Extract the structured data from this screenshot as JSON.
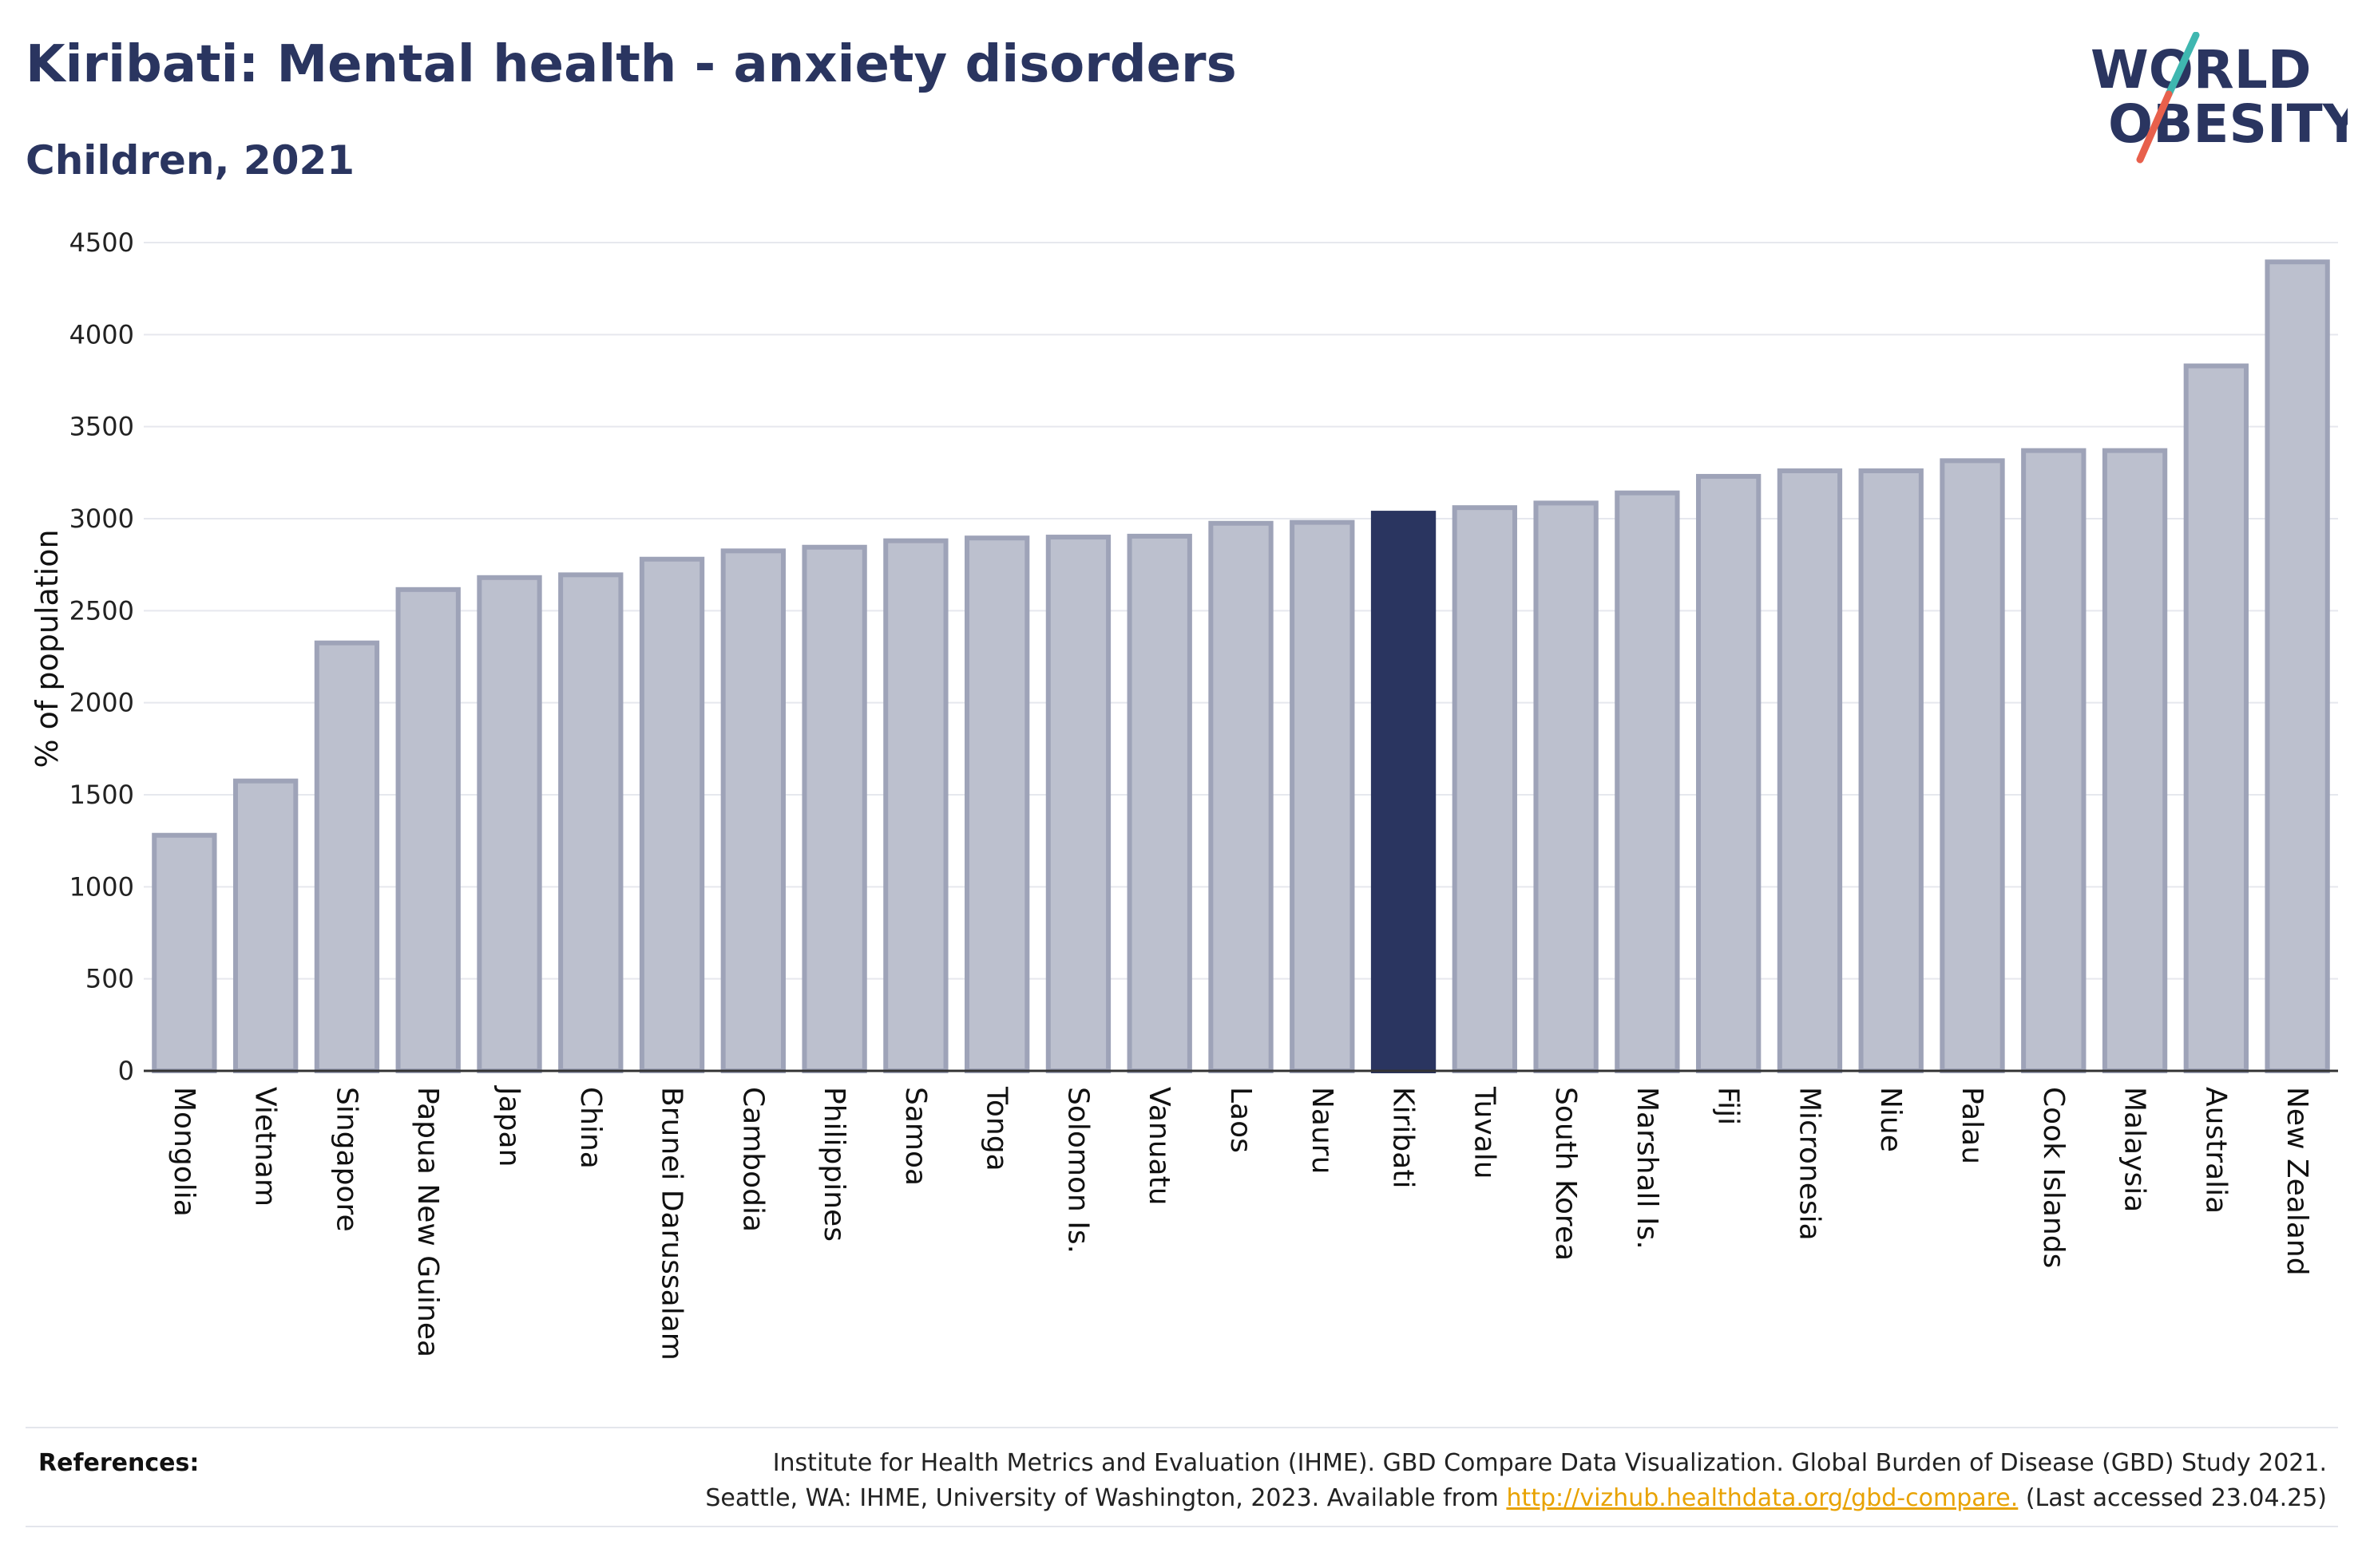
{
  "header": {
    "title": "Kiribati: Mental health - anxiety disorders",
    "subtitle": "Children, 2021"
  },
  "logo": {
    "line1": "WORLD",
    "line2": "OBESITY",
    "colors": {
      "text": "#2a3560",
      "slash_top": "#3fb7b0",
      "slash_bottom": "#e8604c"
    }
  },
  "chart_data": {
    "type": "bar",
    "ylabel": "% of population",
    "xlabel": "",
    "ylim": [
      0,
      4500
    ],
    "yticks": [
      0,
      500,
      1000,
      1500,
      2000,
      2500,
      3000,
      3500,
      4000,
      4500
    ],
    "grid": true,
    "highlight": "Kiribati",
    "colors": {
      "bar": "#bcc0ce",
      "bar_edge": "#9ea3b8",
      "highlight": "#2a3560",
      "grid": "#e6e8ee",
      "axis": "#333333"
    },
    "categories": [
      "Mongolia",
      "Vietnam",
      "Singapore",
      "Papua New Guinea",
      "Japan",
      "China",
      "Brunei Darussalam",
      "Cambodia",
      "Philippines",
      "Samoa",
      "Tonga",
      "Solomon Is.",
      "Vanuatu",
      "Laos",
      "Nauru",
      "Kiribati",
      "Tuvalu",
      "South Korea",
      "Marshall Is.",
      "Fiji",
      "Micronesia",
      "Niue",
      "Palau",
      "Cook Islands",
      "Malaysia",
      "Australia",
      "New Zealand"
    ],
    "values": [
      1280,
      1575,
      2325,
      2615,
      2680,
      2695,
      2780,
      2825,
      2845,
      2880,
      2895,
      2900,
      2905,
      2975,
      2980,
      3030,
      3060,
      3085,
      3140,
      3230,
      3260,
      3260,
      3315,
      3370,
      3370,
      3830,
      4395
    ]
  },
  "references": {
    "label": "References:",
    "line1": "Institute for Health Metrics and Evaluation (IHME). GBD Compare Data Visualization. Global Burden of Disease (GBD) Study 2021.",
    "line2_before": "Seattle, WA: IHME, University of Washington, 2023. Available from ",
    "link": "http://vizhub.healthdata.org/gbd-compare.",
    "line2_after": " (Last accessed 23.04.25)"
  }
}
